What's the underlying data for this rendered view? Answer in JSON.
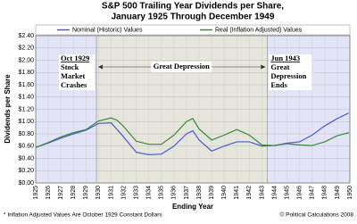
{
  "chart_data": {
    "type": "line",
    "title": [
      "S&P 500 Trailing Year Dividends per Share,",
      "January 1925 Through December 1949"
    ],
    "ylabel": "Dividends per Share",
    "xlabel": "Ending Year",
    "footnote": "* Inflation Adjusted Values Are October 1929 Constant Dollars",
    "credit": "© Political Calculations 2008",
    "xlim": [
      1925,
      1950
    ],
    "xticks": [
      1925,
      1926,
      1927,
      1928,
      1929,
      1930,
      1931,
      1932,
      1933,
      1934,
      1935,
      1936,
      1937,
      1938,
      1939,
      1940,
      1941,
      1942,
      1943,
      1944,
      1945,
      1946,
      1947,
      1948,
      1949,
      1950
    ],
    "ylim": [
      0,
      2.4
    ],
    "yticks": [
      {
        "value": 0,
        "label": "$0.00"
      },
      {
        "value": 0.2,
        "label": "$0.20"
      },
      {
        "value": 0.4,
        "label": "$0.40"
      },
      {
        "value": 0.6,
        "label": "$0.60"
      },
      {
        "value": 0.8,
        "label": "$0.80"
      },
      {
        "value": 1.0,
        "label": "$1.00"
      },
      {
        "value": 1.2,
        "label": "$1.20"
      },
      {
        "value": 1.4,
        "label": "$1.40"
      },
      {
        "value": 1.6,
        "label": "$1.60"
      },
      {
        "value": 1.8,
        "label": "$1.80"
      },
      {
        "value": 2.0,
        "label": "$2.00"
      },
      {
        "value": 2.2,
        "label": "$2.20"
      },
      {
        "value": 2.4,
        "label": "$2.40"
      }
    ],
    "grid": true,
    "regions": [
      {
        "start": 1925,
        "end": 1929.83,
        "color": "#e4e4f8"
      },
      {
        "start": 1929.83,
        "end": 1943.42,
        "color": "#e6e6dc"
      },
      {
        "start": 1943.42,
        "end": 1950,
        "color": "#e4e4f8"
      }
    ],
    "annotations": [
      {
        "x": 1929.83,
        "lines": [
          "Oct 1929",
          "Stock",
          "Market",
          "Crashes"
        ]
      },
      {
        "x": 1936.6,
        "lines": [
          "Great Depression"
        ]
      },
      {
        "x": 1943.42,
        "lines": [
          "Jun 1943",
          "Great",
          "Depression",
          "Ends"
        ]
      }
    ],
    "series": [
      {
        "name": "Nominal (Historic) Values",
        "color": "#4a5bd6",
        "x": [
          1925,
          1926,
          1927,
          1928,
          1929,
          1930,
          1931,
          1932,
          1933,
          1934,
          1935,
          1936,
          1937,
          1937.5,
          1938,
          1939,
          1940,
          1941,
          1942,
          1943,
          1944,
          1945,
          1946,
          1947,
          1948,
          1949,
          1949.92
        ],
        "values": [
          0.58,
          0.65,
          0.73,
          0.8,
          0.86,
          0.97,
          0.98,
          0.75,
          0.5,
          0.46,
          0.47,
          0.6,
          0.8,
          0.85,
          0.7,
          0.52,
          0.6,
          0.67,
          0.67,
          0.6,
          0.61,
          0.65,
          0.67,
          0.78,
          0.93,
          1.05,
          1.14
        ]
      },
      {
        "name": "Real (Inflation Adjusted) Values",
        "color": "#3a8a3a",
        "x": [
          1925,
          1926,
          1927,
          1928,
          1929,
          1930,
          1931,
          1931.5,
          1932,
          1933,
          1934,
          1935,
          1936,
          1937,
          1937.5,
          1938,
          1939,
          1940,
          1941,
          1942,
          1943,
          1944,
          1945,
          1946,
          1947,
          1948,
          1949,
          1949.92
        ],
        "values": [
          0.58,
          0.66,
          0.75,
          0.82,
          0.87,
          1.01,
          1.06,
          1.02,
          0.92,
          0.68,
          0.63,
          0.63,
          0.78,
          1.0,
          1.05,
          0.88,
          0.7,
          0.78,
          0.87,
          0.78,
          0.62,
          0.61,
          0.64,
          0.62,
          0.61,
          0.67,
          0.77,
          0.82
        ]
      }
    ]
  }
}
